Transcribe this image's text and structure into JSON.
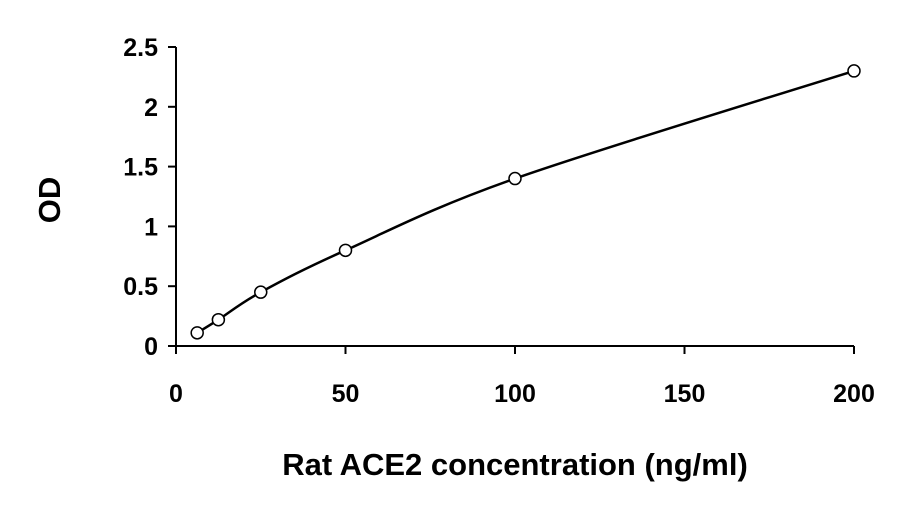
{
  "chart_data": {
    "type": "scatter",
    "title": "",
    "xlabel": "Rat ACE2 concentration (ng/ml)",
    "ylabel": "OD",
    "xlim": [
      0,
      200
    ],
    "ylim": [
      0,
      2.5
    ],
    "x_ticks": [
      0,
      50,
      100,
      150,
      200
    ],
    "x_tick_labels": [
      "0",
      "50",
      "100",
      "150",
      "200"
    ],
    "y_ticks": [
      0,
      0.5,
      1,
      1.5,
      2,
      2.5
    ],
    "y_tick_labels": [
      "0",
      "0.5",
      "1",
      "1.5",
      "2",
      "2.5"
    ],
    "grid": false,
    "legend": "none",
    "trendline": "smooth fitted curve",
    "series": [
      {
        "x": [
          6.25,
          12.5,
          25,
          50,
          100,
          200
        ],
        "y": [
          0.11,
          0.22,
          0.45,
          0.8,
          1.4,
          2.3
        ]
      }
    ],
    "colors": {
      "line": "#000000",
      "marker_fill": "#ffffff",
      "marker_stroke": "#000000"
    }
  }
}
